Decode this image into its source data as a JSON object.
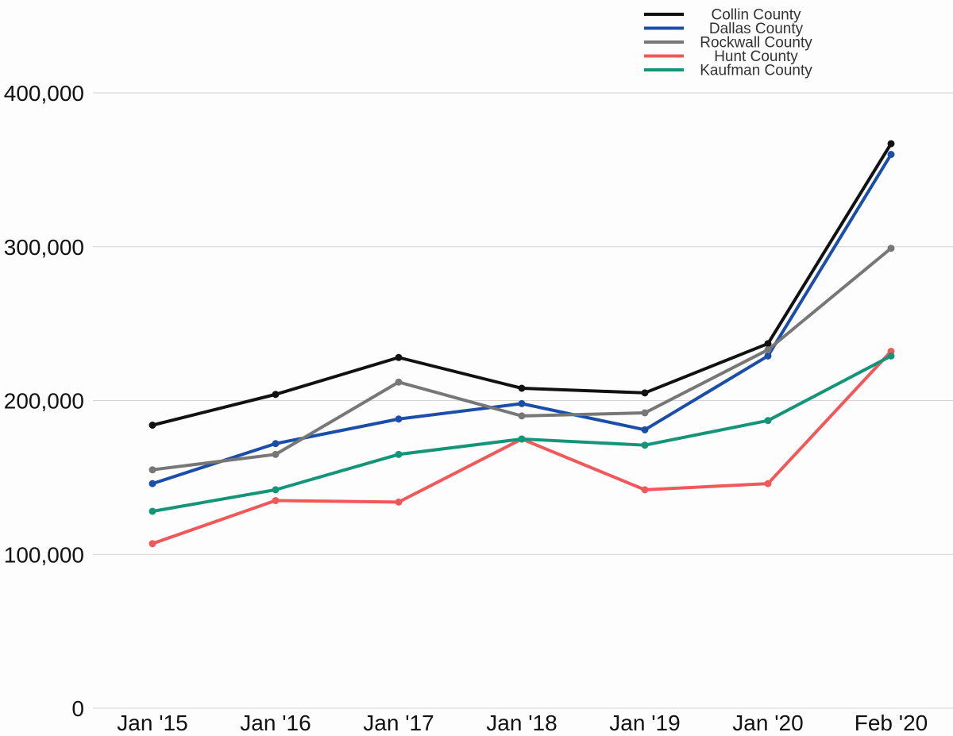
{
  "chart_data": {
    "type": "line",
    "categories": [
      "Jan '15",
      "Jan '16",
      "Jan '17",
      "Jan '18",
      "Jan '19",
      "Jan '20",
      "Feb '20"
    ],
    "ylim": [
      0,
      400000
    ],
    "yticks": [
      0,
      100000,
      200000,
      300000,
      400000
    ],
    "ytick_labels": [
      "0",
      "100,000",
      "200,000",
      "300,000",
      "400,000"
    ],
    "grid": true,
    "legend_position": "top-right",
    "series": [
      {
        "name": "Collin County",
        "color": "#111111",
        "values": [
          184000,
          204000,
          228000,
          208000,
          205000,
          237000,
          367000
        ]
      },
      {
        "name": "Dallas County",
        "color": "#1a4ea8",
        "values": [
          146000,
          172000,
          188000,
          198000,
          181000,
          229000,
          360000
        ]
      },
      {
        "name": "Rockwall County",
        "color": "#777777",
        "values": [
          155000,
          165000,
          212000,
          190000,
          192000,
          233000,
          299000
        ]
      },
      {
        "name": "Hunt County",
        "color": "#f0585a",
        "values": [
          107000,
          135000,
          134000,
          175000,
          142000,
          146000,
          232000
        ]
      },
      {
        "name": "Kaufman County",
        "color": "#14957a",
        "values": [
          128000,
          142000,
          165000,
          175000,
          171000,
          187000,
          229000
        ]
      }
    ]
  }
}
